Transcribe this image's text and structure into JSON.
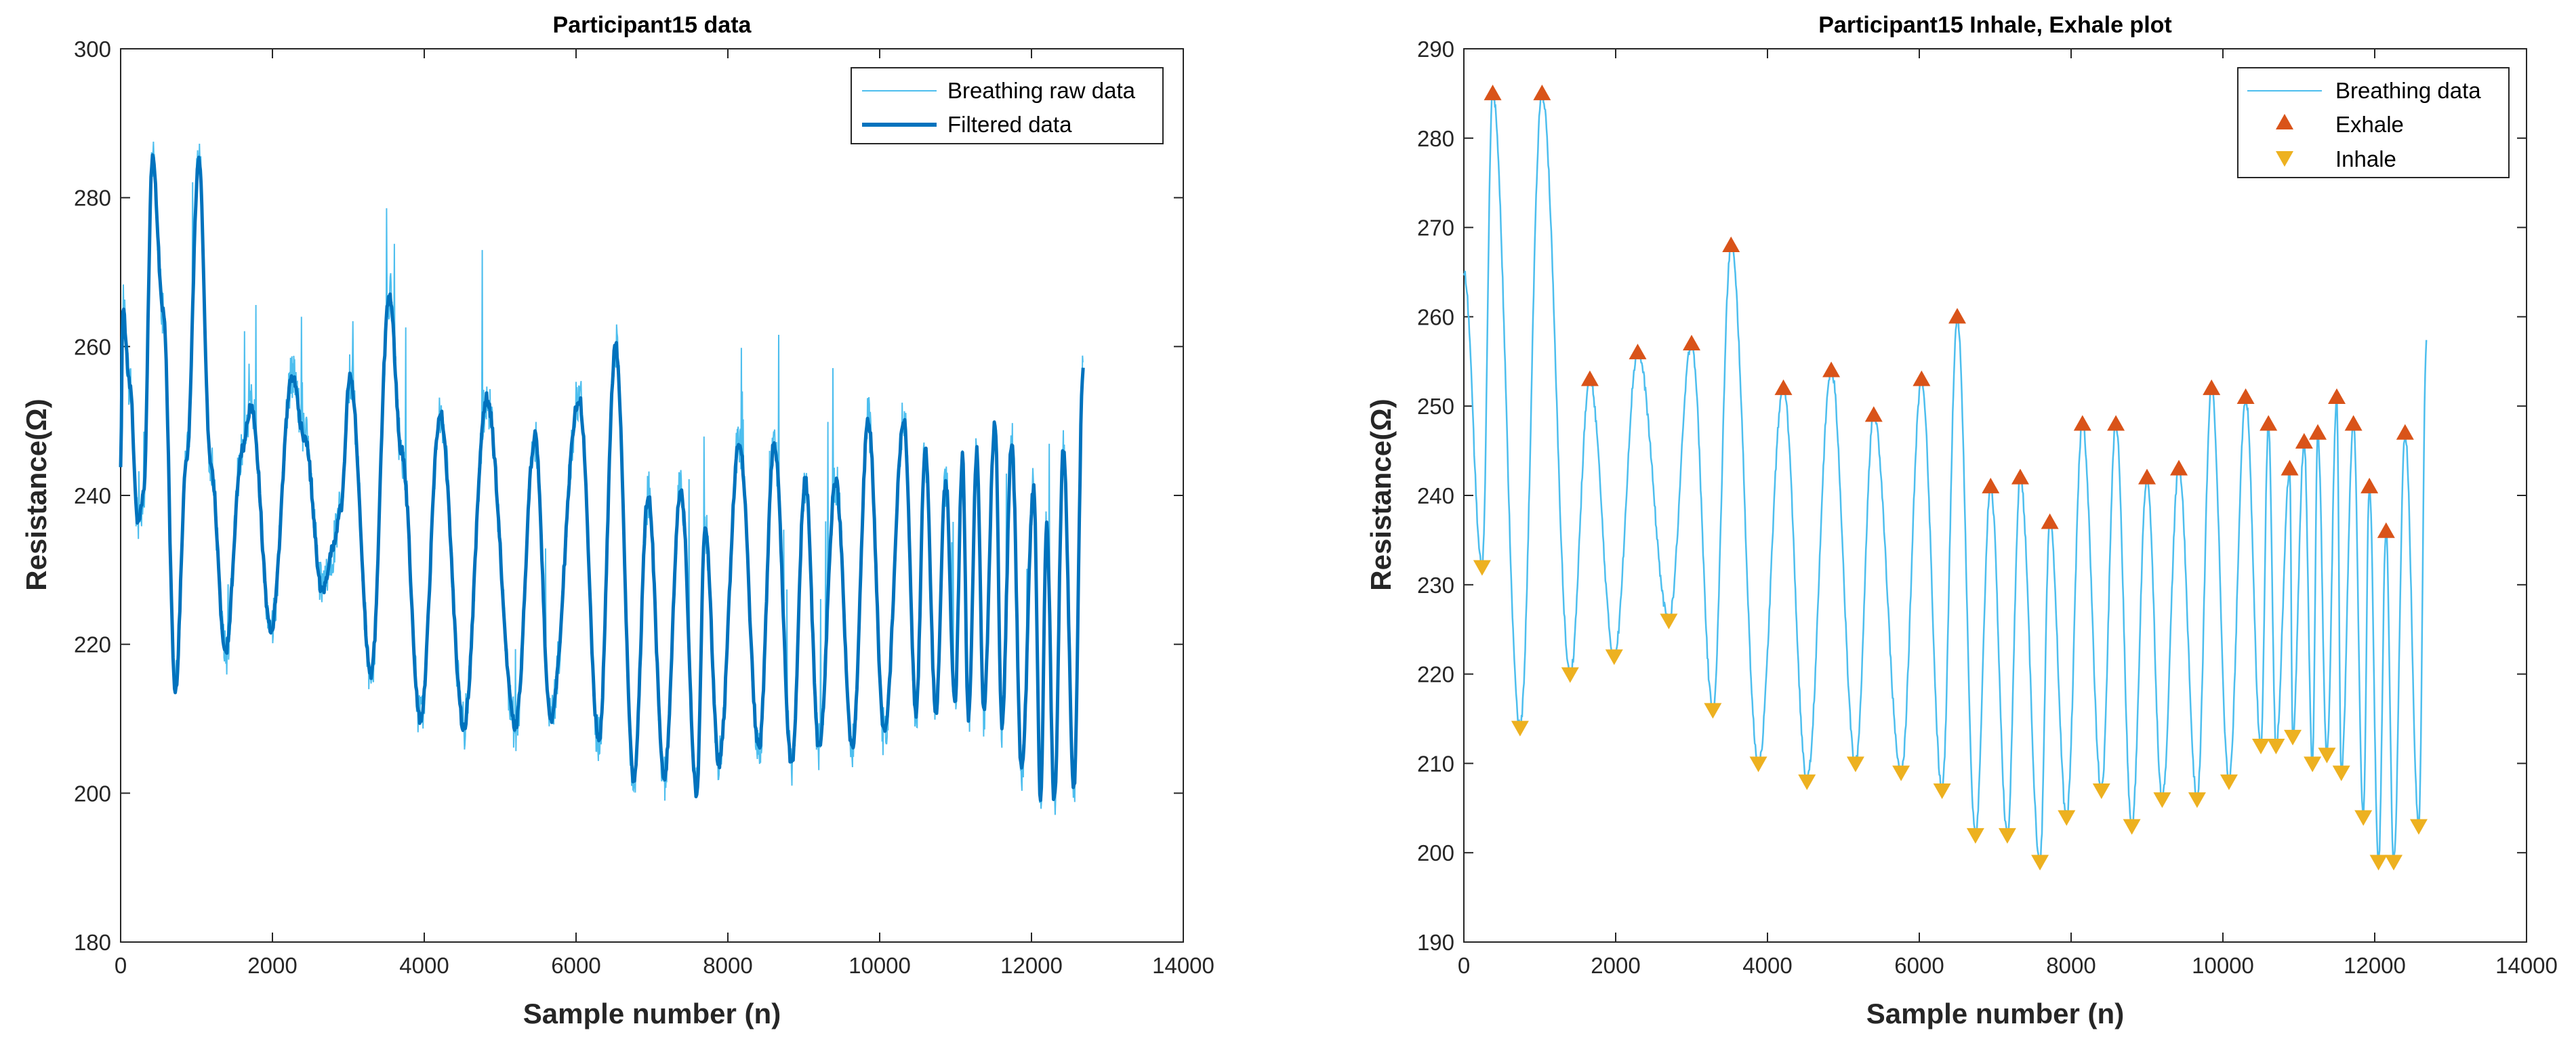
{
  "chart_data": [
    {
      "type": "line",
      "title": "Participant15 data",
      "xlabel": "Sample number (n)",
      "ylabel": "Resistance(Ω)",
      "xlim": [
        0,
        14000
      ],
      "ylim": [
        180,
        300
      ],
      "xticks": [
        0,
        2000,
        4000,
        6000,
        8000,
        10000,
        12000,
        14000
      ],
      "yticks": [
        180,
        200,
        220,
        240,
        260,
        280,
        300
      ],
      "legend_position": "top-right",
      "colors": {
        "raw": "#4dbeee",
        "filtered": "#0072bd"
      },
      "series": [
        {
          "name": "Breathing raw data",
          "style": "thin",
          "noise": 5
        },
        {
          "name": "Filtered data",
          "style": "thick",
          "x": [
            0,
            30,
            120,
            230,
            300,
            420,
            560,
            720,
            870,
            1030,
            1180,
            1380,
            1600,
            1720,
            1980,
            2260,
            2420,
            2660,
            2800,
            2900,
            3020,
            3300,
            3540,
            3700,
            3950,
            4210,
            4520,
            4820,
            5200,
            5460,
            5660,
            6040,
            6300,
            6520,
            6760,
            6950,
            7160,
            7380,
            7590,
            7700,
            7880,
            8150,
            8410,
            8610,
            8840,
            9020,
            9200,
            9420,
            9640,
            9850,
            10060,
            10320,
            10480,
            10600,
            10740,
            10870,
            10990,
            11090,
            11170,
            11280,
            11370,
            11520,
            11610,
            11740,
            11870,
            12030,
            12120,
            12200,
            12300,
            12420,
            12560,
            12680
          ],
          "y": [
            244,
            265,
            255,
            236,
            240,
            285,
            265,
            214,
            245,
            285,
            245,
            219,
            246,
            252,
            222,
            256,
            248,
            227,
            233,
            238,
            256,
            216,
            267,
            246,
            210,
            251,
            209,
            253,
            209,
            248,
            210,
            253,
            207,
            260,
            202,
            240,
            202,
            241,
            200,
            236,
            204,
            247,
            206,
            247,
            204,
            242,
            206,
            242,
            206,
            250,
            208,
            250,
            211,
            246,
            211,
            242,
            212,
            245,
            210,
            246,
            211,
            250,
            209,
            247,
            203,
            241,
            199,
            236,
            199,
            246,
            201,
            257
          ]
        }
      ]
    },
    {
      "type": "line",
      "title": "Participant15 Inhale, Exhale plot",
      "xlabel": "Sample number (n)",
      "ylabel": "Resistance(Ω)",
      "xlim": [
        0,
        14000
      ],
      "ylim": [
        190,
        290
      ],
      "xticks": [
        0,
        2000,
        4000,
        6000,
        8000,
        10000,
        12000,
        14000
      ],
      "yticks": [
        190,
        200,
        210,
        220,
        230,
        240,
        250,
        260,
        270,
        280,
        290
      ],
      "legend_position": "top-right",
      "colors": {
        "line": "#4dbeee",
        "exhale": "#d95319",
        "inhale": "#edb120"
      },
      "series": [
        {
          "name": "Breathing data"
        },
        {
          "name": "Exhale",
          "x": [
            380,
            1030,
            1660,
            2290,
            3000,
            3520,
            4210,
            4840,
            5400,
            6030,
            6500,
            6940,
            7330,
            7720,
            8150,
            8590,
            9000,
            9420,
            9850,
            10300,
            10600,
            10880,
            11070,
            11250,
            11500,
            11720,
            11930,
            12150,
            12400
          ],
          "y": [
            285,
            285,
            253,
            256,
            257,
            268,
            252,
            254,
            249,
            253,
            260,
            241,
            242,
            237,
            248,
            248,
            242,
            243,
            252,
            251,
            248,
            243,
            246,
            247,
            251,
            248,
            241,
            236,
            247
          ]
        },
        {
          "name": "Inhale",
          "x": [
            240,
            740,
            1400,
            1980,
            2700,
            3280,
            3880,
            4520,
            5160,
            5760,
            6300,
            6740,
            7160,
            7590,
            7940,
            8400,
            8800,
            9200,
            9660,
            10080,
            10500,
            10700,
            10920,
            11180,
            11370,
            11560,
            11850,
            12050,
            12250,
            12580
          ],
          "y": [
            232,
            214,
            220,
            222,
            226,
            216,
            210,
            208,
            210,
            209,
            207,
            202,
            202,
            199,
            204,
            207,
            203,
            206,
            206,
            208,
            212,
            212,
            213,
            210,
            211,
            209,
            204,
            199,
            199,
            203
          ]
        }
      ]
    }
  ]
}
